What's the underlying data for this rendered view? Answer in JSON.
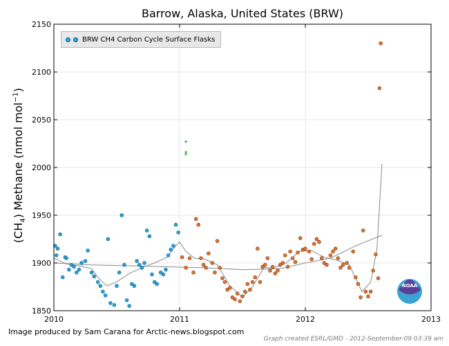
{
  "chart_data": {
    "type": "scatter",
    "title": "Barrow, Alaska, United States (BRW)",
    "ylabel": "(CH4) Methane (nmol mol−1)",
    "xlim": [
      2010,
      2013
    ],
    "ylim": [
      1850,
      2150
    ],
    "xticks": [
      "2010",
      "2011",
      "2012",
      "2013"
    ],
    "yticks": [
      "1850",
      "1900",
      "1950",
      "2000",
      "2050",
      "2100",
      "2150"
    ],
    "legend": {
      "label": "BRW CH4 Carbon Cycle Surface Flasks",
      "position": "top-left"
    },
    "grid": true,
    "series": [
      {
        "name": "BRW CH4 Carbon Cycle Surface Flasks",
        "color": "#2aa1d9",
        "points": [
          [
            2010.01,
            1918
          ],
          [
            2010.02,
            1908
          ],
          [
            2010.03,
            1915
          ],
          [
            2010.05,
            1930
          ],
          [
            2010.07,
            1885
          ],
          [
            2010.09,
            1906
          ],
          [
            2010.1,
            1905
          ],
          [
            2010.12,
            1893
          ],
          [
            2010.14,
            1898
          ],
          [
            2010.16,
            1896
          ],
          [
            2010.18,
            1890
          ],
          [
            2010.2,
            1893
          ],
          [
            2010.22,
            1900
          ],
          [
            2010.25,
            1902
          ],
          [
            2010.27,
            1913
          ],
          [
            2010.3,
            1890
          ],
          [
            2010.32,
            1886
          ],
          [
            2010.35,
            1880
          ],
          [
            2010.37,
            1876
          ],
          [
            2010.39,
            1870
          ],
          [
            2010.41,
            1866
          ],
          [
            2010.43,
            1925
          ],
          [
            2010.45,
            1858
          ],
          [
            2010.48,
            1856
          ],
          [
            2010.5,
            1876
          ],
          [
            2010.52,
            1890
          ],
          [
            2010.54,
            1950
          ],
          [
            2010.56,
            1898
          ],
          [
            2010.58,
            1861
          ],
          [
            2010.6,
            1855
          ],
          [
            2010.62,
            1878
          ],
          [
            2010.64,
            1876
          ],
          [
            2010.66,
            1902
          ],
          [
            2010.68,
            1898
          ],
          [
            2010.7,
            1895
          ],
          [
            2010.72,
            1900
          ],
          [
            2010.74,
            1934
          ],
          [
            2010.76,
            1928
          ],
          [
            2010.78,
            1888
          ],
          [
            2010.8,
            1880
          ],
          [
            2010.82,
            1878
          ],
          [
            2010.85,
            1890
          ],
          [
            2010.87,
            1888
          ],
          [
            2010.89,
            1893
          ],
          [
            2010.91,
            1908
          ],
          [
            2010.93,
            1914
          ],
          [
            2010.95,
            1918
          ],
          [
            2010.97,
            1940
          ],
          [
            2010.99,
            1932
          ]
        ]
      },
      {
        "name": "",
        "color": "#e4742f",
        "points": [
          [
            2011.02,
            1906
          ],
          [
            2011.05,
            1895
          ],
          [
            2011.08,
            1905
          ],
          [
            2011.11,
            1890
          ],
          [
            2011.13,
            1946
          ],
          [
            2011.15,
            1940
          ],
          [
            2011.17,
            1905
          ],
          [
            2011.19,
            1898
          ],
          [
            2011.21,
            1895
          ],
          [
            2011.23,
            1910
          ],
          [
            2011.26,
            1900
          ],
          [
            2011.28,
            1890
          ],
          [
            2011.3,
            1923
          ],
          [
            2011.32,
            1895
          ],
          [
            2011.34,
            1884
          ],
          [
            2011.36,
            1880
          ],
          [
            2011.38,
            1872
          ],
          [
            2011.4,
            1874
          ],
          [
            2011.42,
            1864
          ],
          [
            2011.44,
            1862
          ],
          [
            2011.46,
            1868
          ],
          [
            2011.48,
            1860
          ],
          [
            2011.5,
            1865
          ],
          [
            2011.52,
            1870
          ],
          [
            2011.54,
            1878
          ],
          [
            2011.56,
            1872
          ],
          [
            2011.58,
            1880
          ],
          [
            2011.6,
            1885
          ],
          [
            2011.62,
            1915
          ],
          [
            2011.64,
            1880
          ],
          [
            2011.66,
            1896
          ],
          [
            2011.68,
            1898
          ],
          [
            2011.7,
            1905
          ],
          [
            2011.72,
            1892
          ],
          [
            2011.74,
            1896
          ],
          [
            2011.76,
            1889
          ],
          [
            2011.78,
            1892
          ],
          [
            2011.8,
            1898
          ],
          [
            2011.82,
            1900
          ],
          [
            2011.84,
            1908
          ],
          [
            2011.86,
            1896
          ],
          [
            2011.88,
            1912
          ],
          [
            2011.9,
            1905
          ],
          [
            2011.92,
            1901
          ],
          [
            2011.94,
            1911
          ],
          [
            2011.96,
            1926
          ],
          [
            2011.98,
            1914
          ],
          [
            2012.0,
            1915
          ],
          [
            2012.03,
            1912
          ],
          [
            2012.05,
            1904
          ],
          [
            2012.07,
            1920
          ],
          [
            2012.09,
            1925
          ],
          [
            2012.11,
            1922
          ],
          [
            2012.13,
            1905
          ],
          [
            2012.15,
            1900
          ],
          [
            2012.17,
            1898
          ],
          [
            2012.2,
            1908
          ],
          [
            2012.22,
            1912
          ],
          [
            2012.24,
            1915
          ],
          [
            2012.26,
            1905
          ],
          [
            2012.28,
            1895
          ],
          [
            2012.3,
            1898
          ],
          [
            2012.33,
            1900
          ],
          [
            2012.35,
            1895
          ],
          [
            2012.38,
            1912
          ],
          [
            2012.4,
            1885
          ],
          [
            2012.42,
            1878
          ],
          [
            2012.44,
            1864
          ],
          [
            2012.46,
            1934
          ],
          [
            2012.48,
            1870
          ],
          [
            2012.5,
            1865
          ],
          [
            2012.52,
            1870
          ],
          [
            2012.54,
            1892
          ],
          [
            2012.56,
            1909
          ],
          [
            2012.58,
            1884
          ],
          [
            2012.59,
            2083
          ],
          [
            2012.6,
            2130
          ]
        ]
      },
      {
        "name": "",
        "color": "#1a9a1a",
        "marker": "plus",
        "points": [
          [
            2011.05,
            2027
          ],
          [
            2011.05,
            2016
          ],
          [
            2011.05,
            2014
          ]
        ]
      }
    ],
    "fit_curve": {
      "color": "#888888",
      "points": [
        [
          2010.0,
          1905
        ],
        [
          2010.1,
          1899
        ],
        [
          2010.2,
          1897
        ],
        [
          2010.3,
          1894
        ],
        [
          2010.35,
          1885
        ],
        [
          2010.42,
          1876
        ],
        [
          2010.5,
          1880
        ],
        [
          2010.6,
          1889
        ],
        [
          2010.7,
          1895
        ],
        [
          2010.8,
          1900
        ],
        [
          2010.9,
          1906
        ],
        [
          2010.97,
          1918
        ],
        [
          2011.0,
          1922
        ],
        [
          2011.05,
          1912
        ],
        [
          2011.12,
          1905
        ],
        [
          2011.2,
          1904
        ],
        [
          2011.3,
          1898
        ],
        [
          2011.4,
          1876
        ],
        [
          2011.5,
          1864
        ],
        [
          2011.58,
          1875
        ],
        [
          2011.67,
          1895
        ],
        [
          2011.75,
          1895
        ],
        [
          2011.85,
          1900
        ],
        [
          2011.95,
          1912
        ],
        [
          2012.05,
          1913
        ],
        [
          2012.15,
          1906
        ],
        [
          2012.25,
          1903
        ],
        [
          2012.35,
          1898
        ],
        [
          2012.45,
          1870
        ],
        [
          2012.52,
          1880
        ],
        [
          2012.57,
          1915
        ],
        [
          2012.61,
          2004
        ]
      ]
    },
    "trend_curve": {
      "color": "#888888",
      "points": [
        [
          2010.0,
          1900
        ],
        [
          2010.3,
          1898
        ],
        [
          2010.6,
          1897
        ],
        [
          2010.9,
          1896
        ],
        [
          2011.2,
          1895
        ],
        [
          2011.5,
          1893
        ],
        [
          2011.8,
          1894
        ],
        [
          2012.0,
          1900
        ],
        [
          2012.2,
          1905
        ],
        [
          2012.4,
          1918
        ],
        [
          2012.61,
          1929
        ]
      ]
    }
  },
  "footer": {
    "credit": "Image produced by Sam Carana for Arctic-news.blogspot.com",
    "note": "Graph created ESRL/GMD - 2012-September-09 03:39 am"
  },
  "logo": {
    "text": "NOAA"
  },
  "colors": {
    "noaa_blue": "#3aa3d3",
    "noaa_dark": "#1e3a8a"
  }
}
